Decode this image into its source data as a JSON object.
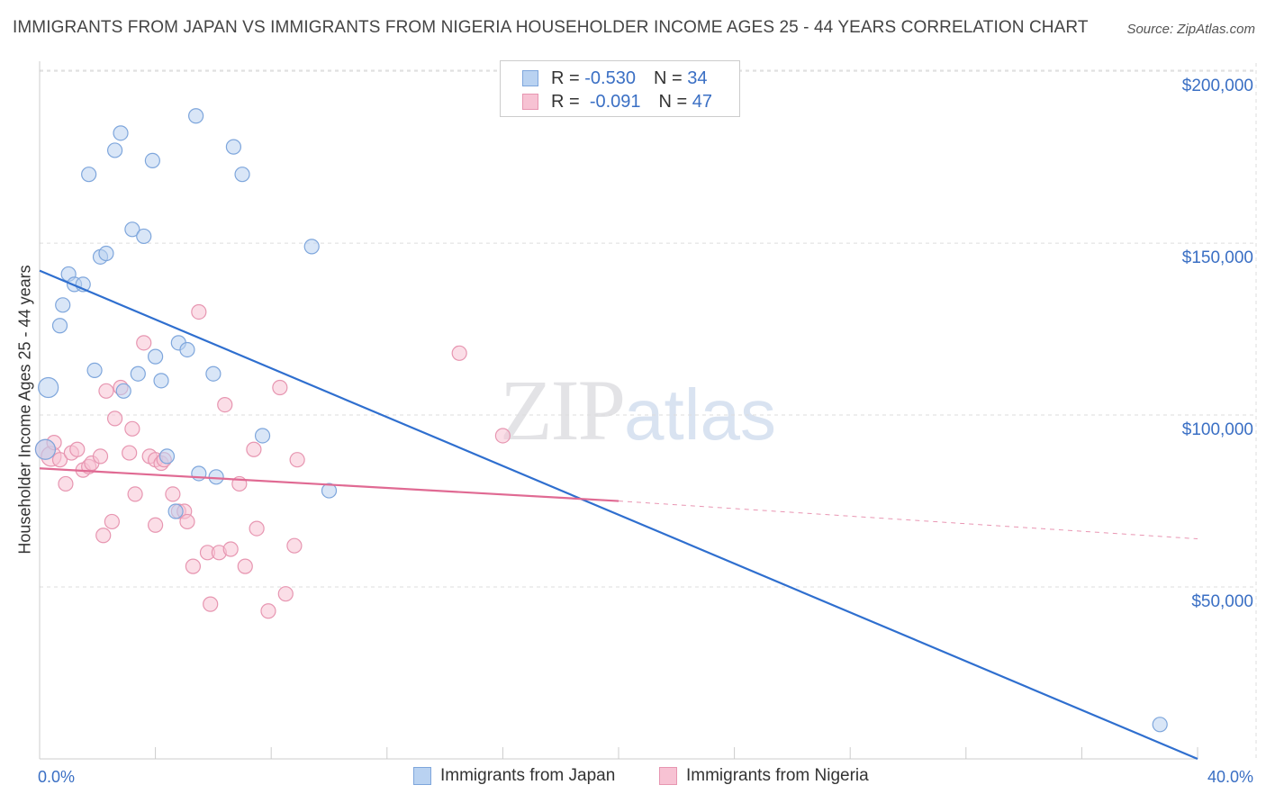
{
  "header": {
    "title": "IMMIGRANTS FROM JAPAN VS IMMIGRANTS FROM NIGERIA HOUSEHOLDER INCOME AGES 25 - 44 YEARS CORRELATION CHART",
    "source": "Source: ZipAtlas.com"
  },
  "watermark": {
    "zip": "ZIP",
    "atlas": "atlas"
  },
  "legend": {
    "rows": [
      {
        "r_label": "R =",
        "r_value": "-0.530",
        "n_label": "N =",
        "n_value": "34"
      },
      {
        "r_label": "R =",
        "r_value": "-0.091",
        "n_label": "N =",
        "n_value": "47"
      }
    ]
  },
  "colors": {
    "japan_fill": "#b9d2f1",
    "japan_stroke": "#7ea6dc",
    "japan_line": "#2f6fcf",
    "nigeria_fill": "#f7c2d3",
    "nigeria_stroke": "#e796b1",
    "nigeria_line": "#e06a93",
    "axis_blue": "#3a6fc4",
    "grid": "#dddddd"
  },
  "chart_data": {
    "type": "scatter",
    "title": "IMMIGRANTS FROM JAPAN VS IMMIGRANTS FROM NIGERIA HOUSEHOLDER INCOME AGES 25 - 44 YEARS CORRELATION CHART",
    "xlabel": "",
    "ylabel": "Householder Income Ages 25 - 44 years",
    "xlim": [
      0,
      40
    ],
    "ylim": [
      0,
      205000
    ],
    "x_tick_labels": [
      "0.0%",
      "40.0%"
    ],
    "y_ticks": [
      50000,
      100000,
      150000,
      200000
    ],
    "y_tick_labels": [
      "$50,000",
      "$100,000",
      "$150,000",
      "$200,000"
    ],
    "grid": true,
    "legend_position": "top-center",
    "series": [
      {
        "name": "Immigrants from Japan",
        "r": -0.53,
        "n": 34,
        "trend": {
          "x": [
            0,
            40
          ],
          "y": [
            142000,
            0
          ]
        },
        "points": [
          [
            0.3,
            108000
          ],
          [
            0.7,
            126000
          ],
          [
            0.8,
            132000
          ],
          [
            1.0,
            141000
          ],
          [
            1.2,
            138000
          ],
          [
            1.5,
            138000
          ],
          [
            1.7,
            170000
          ],
          [
            1.9,
            113000
          ],
          [
            2.1,
            146000
          ],
          [
            2.3,
            147000
          ],
          [
            2.6,
            177000
          ],
          [
            2.8,
            182000
          ],
          [
            2.9,
            107000
          ],
          [
            3.2,
            154000
          ],
          [
            3.4,
            112000
          ],
          [
            3.6,
            152000
          ],
          [
            3.9,
            174000
          ],
          [
            4.0,
            117000
          ],
          [
            4.2,
            110000
          ],
          [
            4.4,
            88000
          ],
          [
            4.7,
            72000
          ],
          [
            4.8,
            121000
          ],
          [
            5.1,
            119000
          ],
          [
            5.4,
            187000
          ],
          [
            5.5,
            83000
          ],
          [
            6.0,
            112000
          ],
          [
            6.1,
            82000
          ],
          [
            6.7,
            178000
          ],
          [
            7.0,
            170000
          ],
          [
            7.7,
            94000
          ],
          [
            9.4,
            149000
          ],
          [
            10.0,
            78000
          ],
          [
            38.7,
            10000
          ],
          [
            0.2,
            90000
          ]
        ]
      },
      {
        "name": "Immigrants from Nigeria",
        "r": -0.091,
        "n": 47,
        "trend": {
          "x": [
            0,
            20
          ],
          "y": [
            84500,
            75000
          ]
        },
        "trend_dashed": {
          "x": [
            20,
            40
          ],
          "y": [
            75000,
            64000
          ]
        },
        "points": [
          [
            0.2,
            90000
          ],
          [
            0.4,
            88000
          ],
          [
            0.5,
            92000
          ],
          [
            0.7,
            87000
          ],
          [
            0.9,
            80000
          ],
          [
            1.1,
            89000
          ],
          [
            1.3,
            90000
          ],
          [
            1.5,
            84000
          ],
          [
            1.7,
            85000
          ],
          [
            1.8,
            86000
          ],
          [
            2.1,
            88000
          ],
          [
            2.2,
            65000
          ],
          [
            2.3,
            107000
          ],
          [
            2.5,
            69000
          ],
          [
            2.6,
            99000
          ],
          [
            2.8,
            108000
          ],
          [
            3.1,
            89000
          ],
          [
            3.2,
            96000
          ],
          [
            3.3,
            77000
          ],
          [
            3.6,
            121000
          ],
          [
            3.8,
            88000
          ],
          [
            4.0,
            87000
          ],
          [
            4.0,
            68000
          ],
          [
            4.2,
            86000
          ],
          [
            4.3,
            87000
          ],
          [
            4.6,
            77000
          ],
          [
            4.8,
            72000
          ],
          [
            5.0,
            72000
          ],
          [
            5.1,
            69000
          ],
          [
            5.3,
            56000
          ],
          [
            5.5,
            130000
          ],
          [
            5.8,
            60000
          ],
          [
            5.9,
            45000
          ],
          [
            6.2,
            60000
          ],
          [
            6.4,
            103000
          ],
          [
            6.6,
            61000
          ],
          [
            6.9,
            80000
          ],
          [
            7.1,
            56000
          ],
          [
            7.4,
            90000
          ],
          [
            7.5,
            67000
          ],
          [
            7.9,
            43000
          ],
          [
            8.3,
            108000
          ],
          [
            8.5,
            48000
          ],
          [
            8.8,
            62000
          ],
          [
            8.9,
            87000
          ],
          [
            14.5,
            118000
          ],
          [
            16.0,
            94000
          ]
        ]
      }
    ]
  }
}
